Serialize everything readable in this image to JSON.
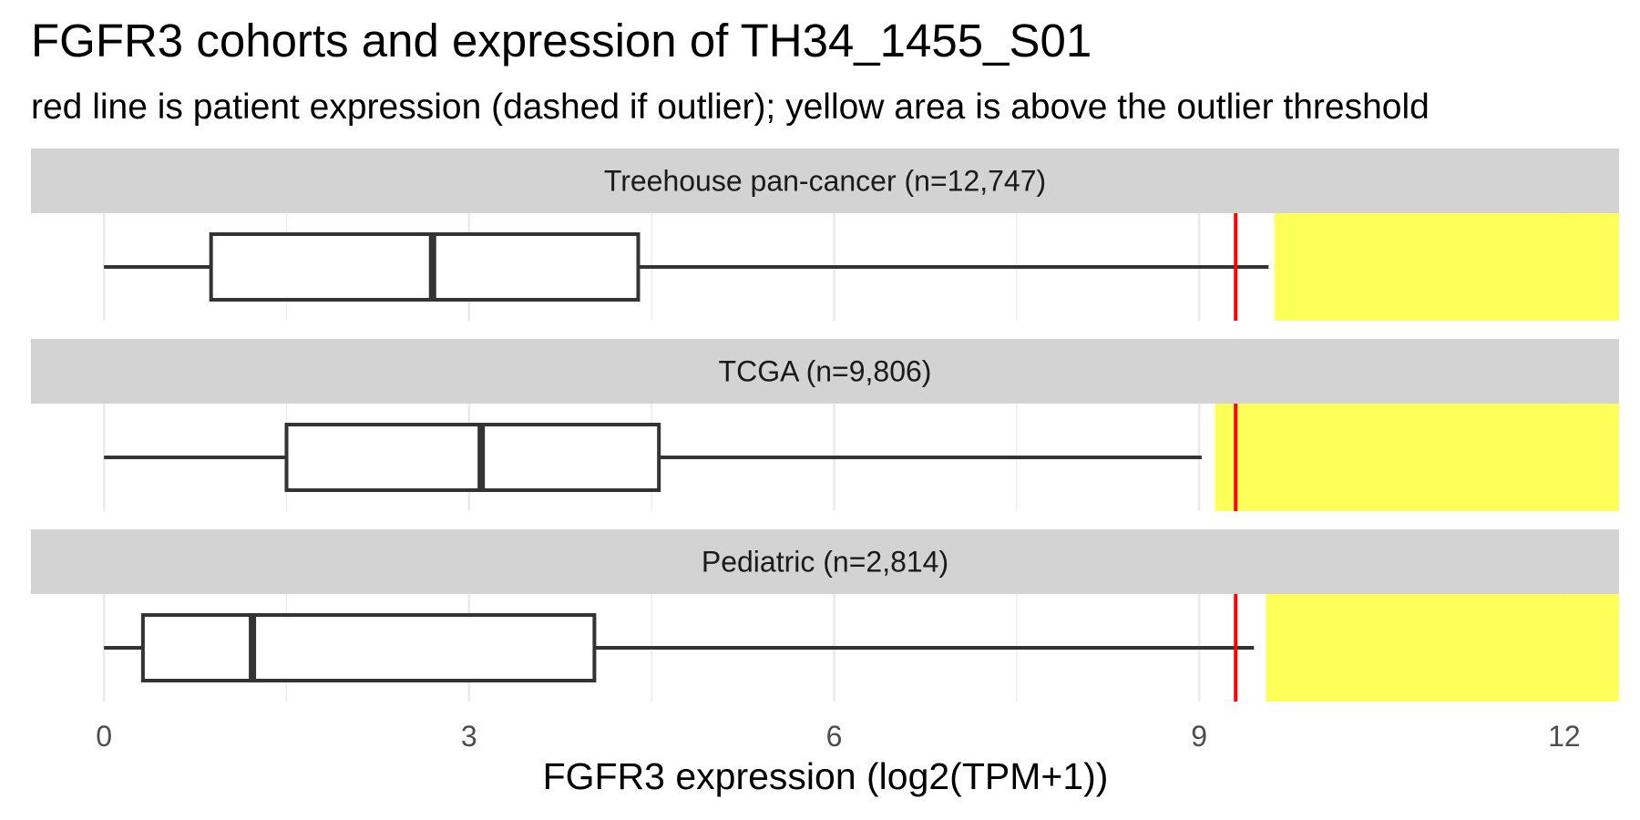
{
  "chart_data": {
    "type": "boxplot",
    "title": "FGFR3 cohorts and expression of TH34_1455_S01",
    "subtitle": "red line is patient expression (dashed if outlier); yellow area is above the outlier threshold",
    "xlabel": "FGFR3 expression (log2(TPM+1))",
    "xlim": [
      -0.6,
      12.45
    ],
    "xticks": [
      0,
      3,
      6,
      9,
      12
    ],
    "tick_labels": [
      "0",
      "3",
      "6",
      "9",
      "12"
    ],
    "grid": true,
    "patient_expression": 9.3,
    "panels": [
      {
        "label": "Treehouse pan-cancer (n=12,747)",
        "whisker_low": 0,
        "q1": 0.88,
        "median": 2.7,
        "q3": 4.39,
        "whisker_high": 9.57,
        "outlier_threshold": 9.62
      },
      {
        "label": "TCGA (n=9,806)",
        "whisker_low": 0,
        "q1": 1.5,
        "median": 3.1,
        "q3": 4.56,
        "whisker_high": 9.02,
        "outlier_threshold": 9.13
      },
      {
        "label": "Pediatric (n=2,814)",
        "whisker_low": 0,
        "q1": 0.32,
        "median": 1.22,
        "q3": 4.03,
        "whisker_high": 9.45,
        "outlier_threshold": 9.55
      }
    ],
    "colors": {
      "box_stroke": "#333333",
      "box_fill": "#ffffff",
      "patient_line": "#ff0000",
      "outlier_area": "#ffff4d",
      "strip_background": "#d3d3d3",
      "grid": "#ebebeb"
    }
  }
}
